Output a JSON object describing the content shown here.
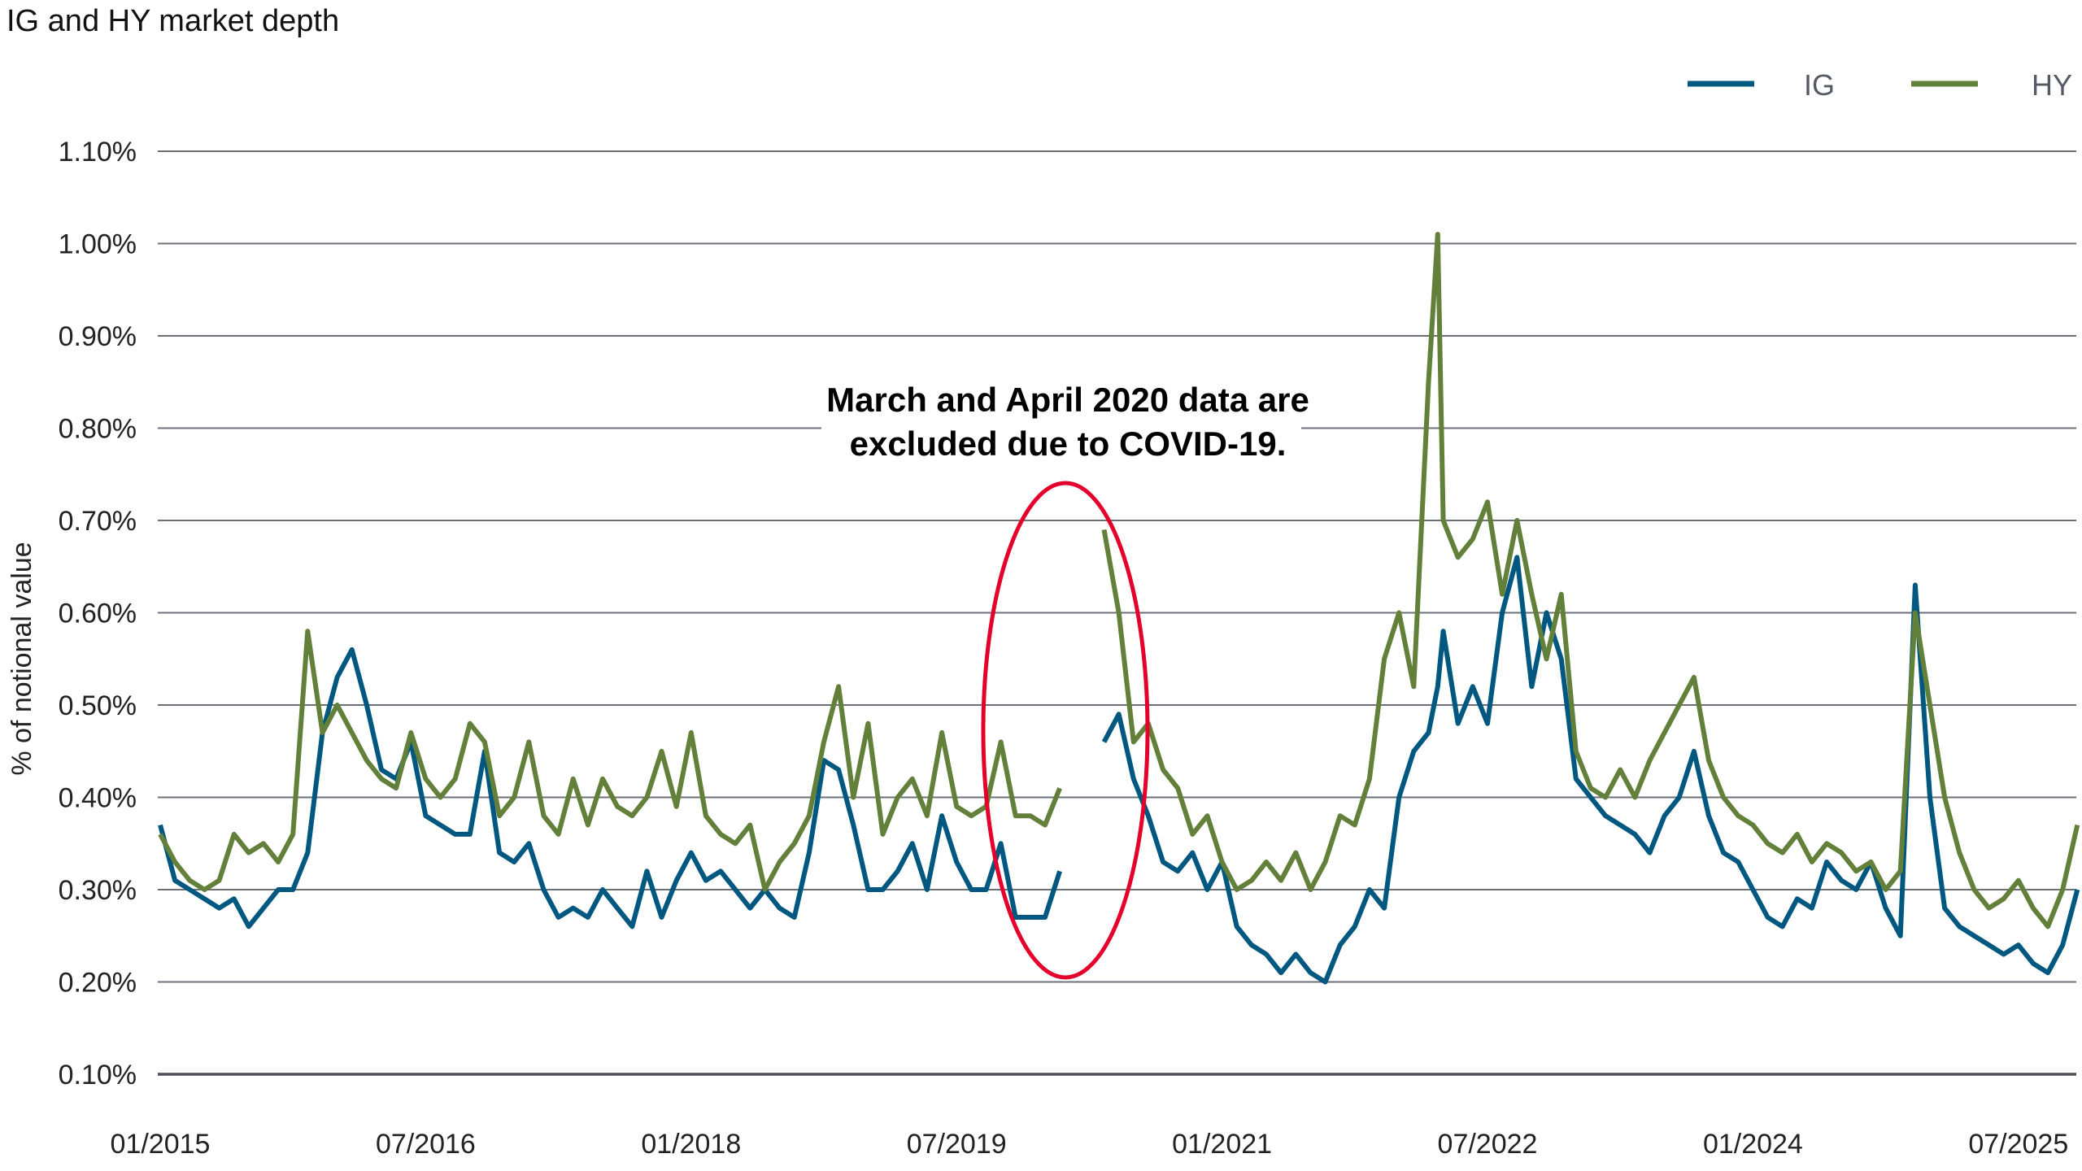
{
  "chart_data": {
    "type": "line",
    "title": "IG and HY market depth",
    "ylabel": "% of notional value",
    "xlabel": "",
    "ylim": [
      0.1,
      1.1
    ],
    "yticks": [
      "0.10%",
      "0.20%",
      "0.30%",
      "0.40%",
      "0.50%",
      "0.60%",
      "0.70%",
      "0.80%",
      "0.90%",
      "1.00%",
      "1.10%"
    ],
    "xticks": [
      "01/2015",
      "07/2016",
      "01/2018",
      "07/2019",
      "01/2021",
      "07/2022",
      "01/2024",
      "07/2025"
    ],
    "xtick_dates": [
      "2015-01",
      "2016-07",
      "2018-01",
      "2019-07",
      "2021-01",
      "2022-07",
      "2024-01",
      "2025-07"
    ],
    "grid": true,
    "legend_position": "top-right",
    "annotation": {
      "lines": [
        "March and April 2020 data are",
        "excluded due to COVID-19."
      ],
      "color": "#e4002b"
    },
    "x": [
      "2015-01",
      "2015-02",
      "2015-03",
      "2015-04",
      "2015-05",
      "2015-06",
      "2015-07",
      "2015-08",
      "2015-09",
      "2015-10",
      "2015-11",
      "2015-12",
      "2016-01",
      "2016-02",
      "2016-03",
      "2016-04",
      "2016-05",
      "2016-06",
      "2016-07",
      "2016-08",
      "2016-09",
      "2016-10",
      "2016-11",
      "2016-12",
      "2017-01",
      "2017-02",
      "2017-03",
      "2017-04",
      "2017-05",
      "2017-06",
      "2017-07",
      "2017-08",
      "2017-09",
      "2017-10",
      "2017-11",
      "2017-12",
      "2018-01",
      "2018-02",
      "2018-03",
      "2018-04",
      "2018-05",
      "2018-06",
      "2018-07",
      "2018-08",
      "2018-09",
      "2018-10",
      "2018-11",
      "2018-12",
      "2019-01",
      "2019-02",
      "2019-03",
      "2019-04",
      "2019-05",
      "2019-06",
      "2019-07",
      "2019-08",
      "2019-09",
      "2019-10",
      "2019-11",
      "2019-12",
      "2020-01",
      "2020-02",
      "2020-03",
      "2020-04",
      "2020-05",
      "2020-06",
      "2020-07",
      "2020-08",
      "2020-09",
      "2020-10",
      "2020-11",
      "2020-12",
      "2021-01",
      "2021-02",
      "2021-03",
      "2021-04",
      "2021-05",
      "2021-06",
      "2021-07",
      "2021-08",
      "2021-09",
      "2021-10",
      "2021-11",
      "2021-12",
      "2022-01",
      "2022-02",
      "2022-03",
      "2022-03-20",
      "2022-04",
      "2022-05",
      "2022-06",
      "2022-07",
      "2022-08",
      "2022-09",
      "2022-10",
      "2022-11",
      "2022-12",
      "2023-01",
      "2023-02",
      "2023-03",
      "2023-04",
      "2023-05",
      "2023-06",
      "2023-07",
      "2023-08",
      "2023-09",
      "2023-10",
      "2023-11",
      "2023-12",
      "2024-01",
      "2024-02",
      "2024-03",
      "2024-04",
      "2024-05",
      "2024-06",
      "2024-07",
      "2024-08",
      "2024-09",
      "2024-10",
      "2024-11",
      "2024-12",
      "2025-01",
      "2025-02",
      "2025-03",
      "2025-04",
      "2025-05",
      "2025-06",
      "2025-07",
      "2025-08",
      "2025-09",
      "2025-10",
      "2025-11"
    ],
    "series": [
      {
        "name": "IG",
        "color": "#00577f",
        "values": [
          0.37,
          0.31,
          0.3,
          0.29,
          0.28,
          0.29,
          0.26,
          0.28,
          0.3,
          0.3,
          0.34,
          0.47,
          0.53,
          0.56,
          0.5,
          0.43,
          0.42,
          0.46,
          0.38,
          0.37,
          0.36,
          0.36,
          0.45,
          0.34,
          0.33,
          0.35,
          0.3,
          0.27,
          0.28,
          0.27,
          0.3,
          0.28,
          0.26,
          0.32,
          0.27,
          0.31,
          0.34,
          0.31,
          0.32,
          0.3,
          0.28,
          0.3,
          0.28,
          0.27,
          0.34,
          0.44,
          0.43,
          0.37,
          0.3,
          0.3,
          0.32,
          0.35,
          0.3,
          0.38,
          0.33,
          0.3,
          0.3,
          0.35,
          0.27,
          0.27,
          0.27,
          0.32,
          null,
          null,
          0.46,
          0.49,
          0.42,
          0.38,
          0.33,
          0.32,
          0.34,
          0.3,
          0.33,
          0.26,
          0.24,
          0.23,
          0.21,
          0.23,
          0.21,
          0.2,
          0.24,
          0.26,
          0.3,
          0.28,
          0.4,
          0.45,
          0.47,
          0.52,
          0.58,
          0.48,
          0.52,
          0.48,
          0.6,
          0.66,
          0.52,
          0.6,
          0.55,
          0.42,
          0.4,
          0.38,
          0.37,
          0.36,
          0.34,
          0.38,
          0.4,
          0.45,
          0.38,
          0.34,
          0.33,
          0.3,
          0.27,
          0.26,
          0.29,
          0.28,
          0.33,
          0.31,
          0.3,
          0.33,
          0.28,
          0.25,
          0.63,
          0.4,
          0.28,
          0.26,
          0.25,
          0.24,
          0.23,
          0.24,
          0.22,
          0.21,
          0.24,
          0.3
        ]
      },
      {
        "name": "HY",
        "color": "#62803a",
        "values": [
          0.36,
          0.33,
          0.31,
          0.3,
          0.31,
          0.36,
          0.34,
          0.35,
          0.33,
          0.36,
          0.58,
          0.47,
          0.5,
          0.47,
          0.44,
          0.42,
          0.41,
          0.47,
          0.42,
          0.4,
          0.42,
          0.48,
          0.46,
          0.38,
          0.4,
          0.46,
          0.38,
          0.36,
          0.42,
          0.37,
          0.42,
          0.39,
          0.38,
          0.4,
          0.45,
          0.39,
          0.47,
          0.38,
          0.36,
          0.35,
          0.37,
          0.3,
          0.33,
          0.35,
          0.38,
          0.46,
          0.52,
          0.4,
          0.48,
          0.36,
          0.4,
          0.42,
          0.38,
          0.47,
          0.39,
          0.38,
          0.39,
          0.46,
          0.38,
          0.38,
          0.37,
          0.41,
          null,
          null,
          0.69,
          0.6,
          0.46,
          0.48,
          0.43,
          0.41,
          0.36,
          0.38,
          0.33,
          0.3,
          0.31,
          0.33,
          0.31,
          0.34,
          0.3,
          0.33,
          0.38,
          0.37,
          0.42,
          0.55,
          0.6,
          0.52,
          0.85,
          1.01,
          0.7,
          0.66,
          0.68,
          0.72,
          0.62,
          0.7,
          0.62,
          0.55,
          0.62,
          0.45,
          0.41,
          0.4,
          0.43,
          0.4,
          0.44,
          0.47,
          0.5,
          0.53,
          0.44,
          0.4,
          0.38,
          0.37,
          0.35,
          0.34,
          0.36,
          0.33,
          0.35,
          0.34,
          0.32,
          0.33,
          0.3,
          0.32,
          0.6,
          0.5,
          0.4,
          0.34,
          0.3,
          0.28,
          0.29,
          0.31,
          0.28,
          0.26,
          0.3,
          0.37
        ]
      }
    ]
  }
}
